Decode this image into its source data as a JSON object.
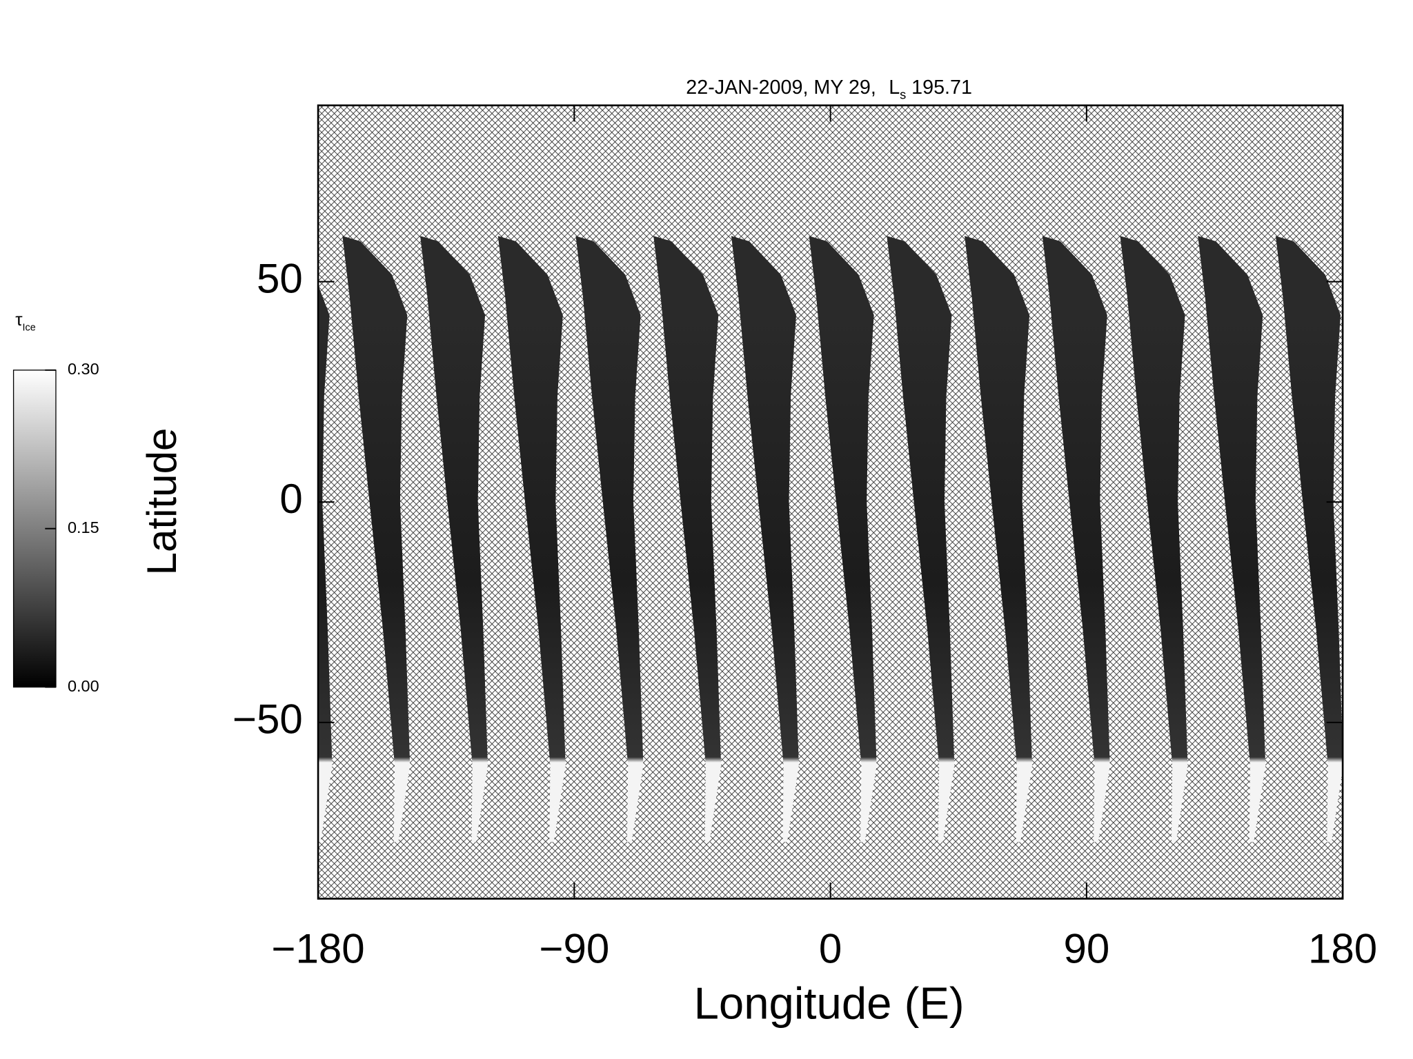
{
  "chart_data": {
    "type": "swath-map",
    "title": "22-JAN-2009, MY 29,",
    "title_symbol": "L",
    "title_symbol_sub": "s",
    "title_value": "195.71",
    "xlabel": "Longitude (E)",
    "ylabel": "Latitude",
    "xlim": [
      -180,
      180
    ],
    "xticks": [
      {
        "value": -180,
        "label": "−180"
      },
      {
        "value": -90,
        "label": "−90"
      },
      0,
      90,
      180
    ],
    "ylim": [
      -90,
      90
    ],
    "yticks": [
      {
        "value": -50,
        "label": "−50"
      },
      0,
      50
    ],
    "colorbar": {
      "label": "τ",
      "label_sub": "Ice",
      "lim": [
        0,
        0.3
      ],
      "ticks": [
        {
          "value": 0,
          "label": "0.00"
        },
        {
          "value": 0.15,
          "label": "0.15"
        },
        {
          "value": 0.3,
          "label": "0.30"
        }
      ]
    }
  }
}
